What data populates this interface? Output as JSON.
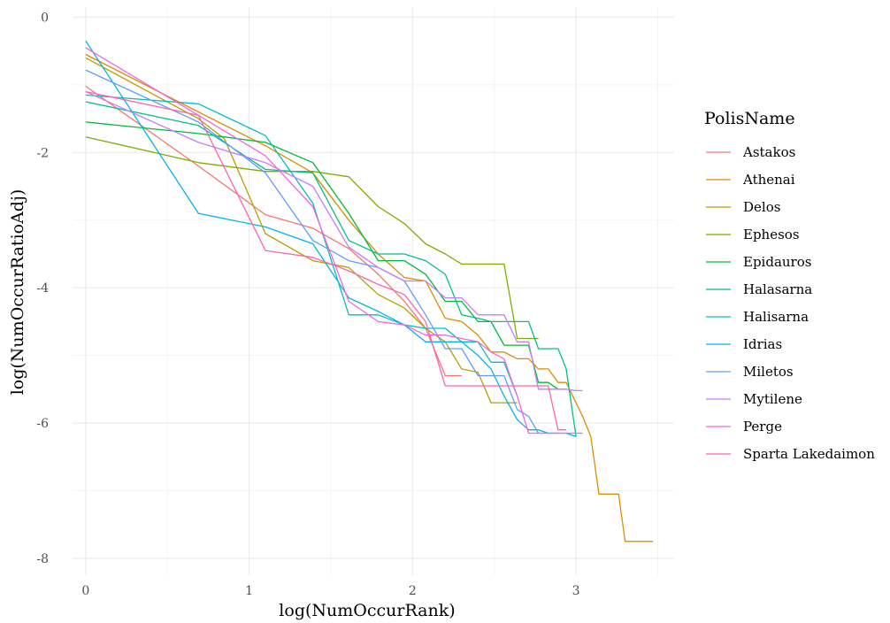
{
  "chart_data": {
    "type": "line",
    "xlabel": "log(NumOccurRank)",
    "ylabel": "log(NumOccurRatioAdj)",
    "xlim": [
      -0.08,
      3.6
    ],
    "ylim": [
      -8.25,
      0.15
    ],
    "x_ticks": [
      0,
      1,
      2,
      3
    ],
    "x_tick_labels": [
      "0",
      "1",
      "2",
      "3"
    ],
    "y_ticks": [
      0,
      -2,
      -4,
      -6,
      -8
    ],
    "y_tick_labels": [
      "0",
      "-2",
      "-4",
      "-6",
      "-8"
    ],
    "grid": true,
    "legend_title": "PolisName",
    "legend_position": "right",
    "series": [
      {
        "name": "Astakos",
        "color": "#F8766D",
        "x": [
          0,
          0.69,
          1.1,
          1.39,
          1.61,
          1.79,
          1.95,
          2.08,
          2.2,
          2.3
        ],
        "y": [
          -1.02,
          -2.2,
          -2.92,
          -3.12,
          -3.42,
          -3.8,
          -4.2,
          -4.6,
          -5.3,
          -5.3
        ]
      },
      {
        "name": "Athenai",
        "color": "#DE8C00",
        "x": [
          0,
          0.69,
          1.1,
          1.39,
          1.61,
          1.79,
          1.95,
          2.08,
          2.2,
          2.3,
          2.4,
          2.48,
          2.56,
          2.64,
          2.71,
          2.77,
          2.83,
          2.89,
          2.94,
          3.0,
          3.04,
          3.09,
          3.14,
          3.18,
          3.22,
          3.26,
          3.3,
          3.33,
          3.37,
          3.4,
          3.43,
          3.47
        ],
        "y": [
          -0.55,
          -1.4,
          -1.9,
          -2.3,
          -3.0,
          -3.5,
          -3.85,
          -3.9,
          -4.45,
          -4.5,
          -4.7,
          -4.95,
          -4.95,
          -5.05,
          -5.05,
          -5.2,
          -5.2,
          -5.4,
          -5.4,
          -5.7,
          -5.9,
          -6.2,
          -7.05,
          -7.05,
          -7.05,
          -7.05,
          -7.75,
          -7.75,
          -7.75,
          -7.75,
          -7.75,
          -7.75
        ]
      },
      {
        "name": "Delos",
        "color": "#B79F00",
        "x": [
          0,
          0.69,
          0.85,
          1.1,
          1.39,
          1.61,
          1.79,
          1.95,
          2.08,
          2.2,
          2.3,
          2.4,
          2.48,
          2.56,
          2.64
        ],
        "y": [
          -0.6,
          -1.5,
          -1.8,
          -3.2,
          -3.6,
          -3.7,
          -4.1,
          -4.3,
          -4.6,
          -4.8,
          -5.2,
          -5.25,
          -5.7,
          -5.7,
          -5.7
        ]
      },
      {
        "name": "Ephesos",
        "color": "#7CAE00",
        "x": [
          0,
          0.69,
          1.1,
          1.39,
          1.61,
          1.79,
          1.95,
          2.08,
          2.2,
          2.3,
          2.4,
          2.48,
          2.56,
          2.64,
          2.71,
          2.77
        ],
        "y": [
          -1.77,
          -2.15,
          -2.28,
          -2.28,
          -2.36,
          -2.8,
          -3.05,
          -3.35,
          -3.5,
          -3.65,
          -3.65,
          -3.65,
          -3.65,
          -4.75,
          -4.75,
          -4.75
        ]
      },
      {
        "name": "Epidauros",
        "color": "#00BA38",
        "x": [
          0,
          0.69,
          1.1,
          1.39,
          1.61,
          1.79,
          1.95,
          2.08,
          2.2,
          2.3,
          2.4,
          2.48,
          2.56,
          2.64,
          2.71,
          2.77,
          2.83,
          2.89,
          2.94
        ],
        "y": [
          -1.55,
          -1.72,
          -1.85,
          -2.15,
          -2.9,
          -3.6,
          -3.6,
          -3.8,
          -4.2,
          -4.2,
          -4.5,
          -4.5,
          -4.85,
          -4.85,
          -4.85,
          -5.4,
          -5.4,
          -5.5,
          -5.5
        ]
      },
      {
        "name": "Halasarna",
        "color": "#00C08B",
        "x": [
          0,
          0.69,
          1.1,
          1.39,
          1.61,
          1.79,
          1.95,
          2.08,
          2.2,
          2.3,
          2.4,
          2.48,
          2.56,
          2.64,
          2.71,
          2.77,
          2.83,
          2.89,
          2.94,
          3.0
        ],
        "y": [
          -1.25,
          -1.6,
          -2.25,
          -2.3,
          -3.3,
          -3.5,
          -3.5,
          -3.6,
          -3.8,
          -4.4,
          -4.45,
          -4.5,
          -4.5,
          -4.5,
          -4.5,
          -4.9,
          -4.9,
          -4.9,
          -5.2,
          -6.2
        ]
      },
      {
        "name": "Halisarna",
        "color": "#00BFC4",
        "x": [
          0,
          0.69,
          1.1,
          1.39,
          1.61,
          1.79,
          1.95,
          2.08,
          2.2,
          2.3,
          2.4,
          2.48,
          2.56,
          2.64
        ],
        "y": [
          -1.15,
          -1.28,
          -1.75,
          -2.75,
          -4.4,
          -4.4,
          -4.55,
          -4.6,
          -4.6,
          -4.8,
          -4.8,
          -5.1,
          -5.1,
          -5.6
        ]
      },
      {
        "name": "Idrias",
        "color": "#00B4F0",
        "x": [
          0,
          0.69,
          1.1,
          1.39,
          1.61,
          1.79,
          1.95,
          2.08,
          2.2,
          2.3,
          2.4,
          2.48,
          2.56,
          2.64,
          2.71,
          2.77,
          2.83,
          2.89,
          2.94,
          3.0
        ],
        "y": [
          -0.35,
          -2.9,
          -3.1,
          -3.35,
          -4.15,
          -4.35,
          -4.55,
          -4.8,
          -4.8,
          -4.8,
          -5.0,
          -5.2,
          -5.6,
          -5.95,
          -6.1,
          -6.1,
          -6.15,
          -6.15,
          -6.15,
          -6.2
        ]
      },
      {
        "name": "Miletos",
        "color": "#619CFF",
        "x": [
          0,
          0.69,
          1.1,
          1.39,
          1.61,
          1.79,
          1.95,
          2.08,
          2.2,
          2.3,
          2.4,
          2.48,
          2.56,
          2.64,
          2.71,
          2.77,
          2.83,
          2.89
        ],
        "y": [
          -0.78,
          -1.55,
          -2.3,
          -3.3,
          -3.6,
          -3.7,
          -3.9,
          -4.4,
          -4.9,
          -4.9,
          -5.3,
          -5.3,
          -5.3,
          -5.8,
          -5.9,
          -6.15,
          -6.15,
          -6.15
        ]
      },
      {
        "name": "Mytilene",
        "color": "#C77CFF",
        "x": [
          0,
          0.69,
          1.1,
          1.39,
          1.61,
          1.79,
          1.95,
          2.08,
          2.2,
          2.3,
          2.4,
          2.48,
          2.56,
          2.64,
          2.71,
          2.77,
          2.83,
          2.89,
          2.94,
          3.0,
          3.04
        ],
        "y": [
          -1.1,
          -1.85,
          -2.15,
          -2.5,
          -3.4,
          -3.7,
          -3.9,
          -3.9,
          -4.15,
          -4.15,
          -4.4,
          -4.4,
          -4.4,
          -4.8,
          -4.8,
          -5.5,
          -5.5,
          -5.5,
          -5.5,
          -5.52,
          -5.52
        ]
      },
      {
        "name": "Perge",
        "color": "#F564E3",
        "x": [
          0,
          0.69,
          1.1,
          1.39,
          1.61,
          1.79,
          1.95,
          2.08,
          2.2,
          2.3,
          2.4,
          2.48,
          2.56,
          2.64,
          2.71,
          2.77,
          2.83,
          2.89,
          2.94,
          3.0,
          3.04
        ],
        "y": [
          -0.45,
          -1.45,
          -2.05,
          -2.8,
          -4.2,
          -4.5,
          -4.55,
          -4.7,
          -4.7,
          -4.75,
          -4.8,
          -4.95,
          -5.05,
          -5.6,
          -6.15,
          -6.15,
          -6.15,
          -6.15,
          -6.15,
          -6.15,
          -6.15
        ]
      },
      {
        "name": "Sparta Lakedaimon",
        "color": "#FF64B0",
        "x": [
          0,
          0.69,
          1.1,
          1.39,
          1.61,
          1.79,
          1.95,
          2.08,
          2.2,
          2.3,
          2.4,
          2.48,
          2.56,
          2.64,
          2.71,
          2.77,
          2.83,
          2.89,
          2.94
        ],
        "y": [
          -1.1,
          -1.45,
          -3.45,
          -3.55,
          -3.75,
          -3.95,
          -4.1,
          -4.5,
          -5.45,
          -5.45,
          -5.45,
          -5.45,
          -5.45,
          -5.45,
          -5.45,
          -5.45,
          -5.45,
          -6.1,
          -6.1
        ]
      }
    ]
  }
}
